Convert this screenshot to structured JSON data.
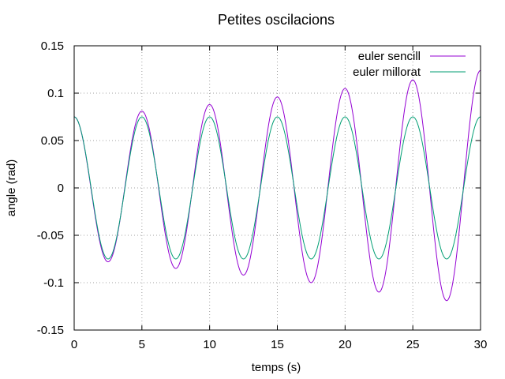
{
  "chart_data": {
    "type": "line",
    "title": "Petites oscilacions",
    "xlabel": "temps (s)",
    "ylabel": "angle (rad)",
    "xlim": [
      0,
      30
    ],
    "ylim": [
      -0.15,
      0.15
    ],
    "xticks": [
      0,
      5,
      10,
      15,
      20,
      25,
      30
    ],
    "xtick_labels": [
      "0",
      "5",
      "10",
      "15",
      "20",
      "25",
      "30"
    ],
    "yticks": [
      -0.15,
      -0.1,
      -0.05,
      0,
      0.05,
      0.1,
      0.15
    ],
    "ytick_labels": [
      "-0.15",
      "-0.1",
      "-0.05",
      "0",
      "0.05",
      "0.1",
      "0.15"
    ],
    "grid": true,
    "legend_position": "top-right",
    "series": [
      {
        "name": "euler sencill",
        "color": "#9400d3",
        "x": [
          0,
          2.5,
          5,
          7.5,
          10,
          12.5,
          15,
          17.5,
          20,
          22.5,
          25,
          27.5,
          30
        ],
        "y": [
          0.075,
          -0.078,
          0.081,
          -0.085,
          0.088,
          -0.092,
          0.096,
          -0.1,
          0.105,
          -0.11,
          0.114,
          -0.119,
          0.124
        ]
      },
      {
        "name": "euler millorat",
        "color": "#009e73",
        "x": [
          0,
          2.5,
          5,
          7.5,
          10,
          12.5,
          15,
          17.5,
          20,
          22.5,
          25,
          27.5,
          30
        ],
        "y": [
          0.075,
          -0.075,
          0.075,
          -0.075,
          0.075,
          -0.075,
          0.075,
          -0.075,
          0.075,
          -0.075,
          0.075,
          -0.075,
          0.075
        ]
      }
    ]
  }
}
